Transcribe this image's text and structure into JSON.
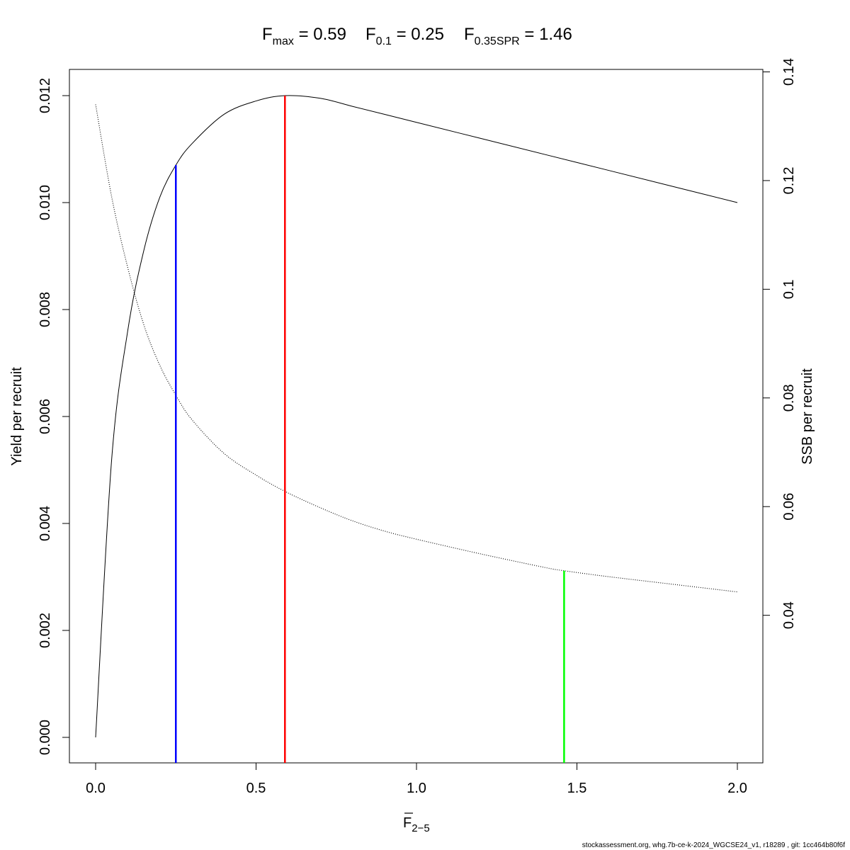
{
  "chart_data": {
    "type": "line",
    "title_parts": [
      {
        "symbol": "F",
        "sub": "max",
        "value": "0.59"
      },
      {
        "symbol": "F",
        "sub": "0.1",
        "value": "0.25"
      },
      {
        "symbol": "F",
        "sub": "0.35SPR",
        "value": "1.46"
      }
    ],
    "xlabel": {
      "symbol": "F",
      "sub": "2−5"
    },
    "ylabel": "Yield per recruit",
    "y2label": "SSB per recruit",
    "xlim": [
      0,
      2
    ],
    "ylim": [
      0,
      0.012
    ],
    "y2lim": [
      0,
      0.14
    ],
    "x_ticks": [
      "0.0",
      "0.5",
      "1.0",
      "1.5",
      "2.0"
    ],
    "y_ticks": [
      "0.000",
      "0.002",
      "0.004",
      "0.006",
      "0.008",
      "0.010",
      "0.012"
    ],
    "y2_ticks": [
      "0.04",
      "0.06",
      "0.08",
      "0.1",
      "0.12",
      "0.14"
    ],
    "series": [
      {
        "axis": "left",
        "style": "solid",
        "x": [
          0,
          0.05,
          0.1,
          0.15,
          0.2,
          0.25,
          0.3,
          0.4,
          0.5,
          0.59,
          0.7,
          0.8,
          0.9,
          1.0,
          1.2,
          1.4,
          1.6,
          1.8,
          2.0
        ],
        "values": [
          0,
          0.0052,
          0.0076,
          0.0091,
          0.0101,
          0.0107,
          0.0111,
          0.01165,
          0.0119,
          0.012,
          0.01195,
          0.0118,
          0.01165,
          0.0115,
          0.0112,
          0.0109,
          0.0106,
          0.0103,
          0.01
        ]
      },
      {
        "axis": "right",
        "style": "dotted",
        "x": [
          0,
          0.05,
          0.1,
          0.15,
          0.2,
          0.25,
          0.3,
          0.4,
          0.5,
          0.59,
          0.7,
          0.8,
          0.9,
          1.0,
          1.2,
          1.4,
          1.46,
          1.6,
          1.8,
          2.0
        ],
        "values": [
          0.134,
          0.117,
          0.104,
          0.0935,
          0.086,
          0.0805,
          0.076,
          0.0698,
          0.0658,
          0.0628,
          0.0598,
          0.0574,
          0.0555,
          0.054,
          0.0513,
          0.0488,
          0.0482,
          0.0471,
          0.0457,
          0.0443
        ]
      }
    ],
    "vlines": [
      {
        "x": 0.25,
        "y_top": 0.0107,
        "axis": "left",
        "color": "#0000FF"
      },
      {
        "x": 0.59,
        "y_top": 0.012,
        "axis": "left",
        "color": "#FF0000"
      },
      {
        "x": 1.46,
        "y_top": 0.0482,
        "axis": "right",
        "color": "#00FF00"
      }
    ],
    "grid": false,
    "legend": "none"
  },
  "footer": "stockassessment.org, whg.7b-ce-k-2024_WGCSE24_v1, r18289 , git: 1cc464b80f6f"
}
